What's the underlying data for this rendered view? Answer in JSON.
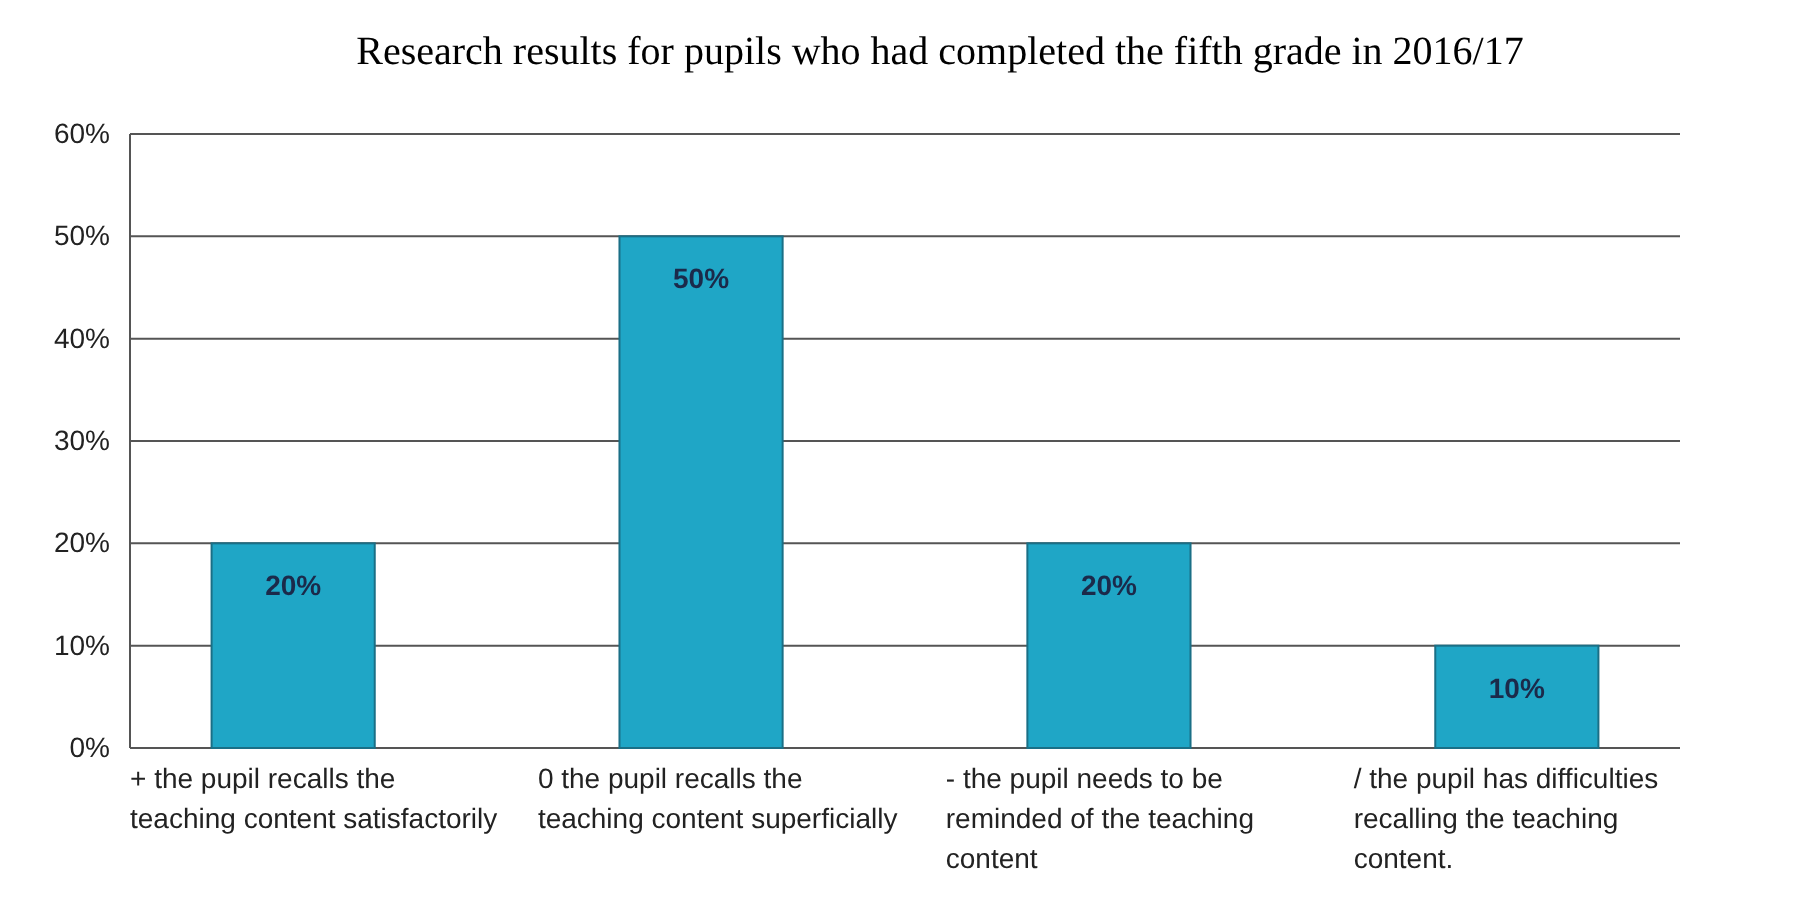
{
  "chart_data": {
    "type": "bar",
    "title": "Research results for pupils who had completed the fifth grade in 2016/17",
    "categories": [
      "+ the pupil recalls the teaching content satisfactorily",
      "0 the pupil recalls the teaching content superficially",
      "- the pupil needs to be reminded of the teaching content",
      "/ the pupil has difficulties recalling the teaching content."
    ],
    "values": [
      20,
      50,
      20,
      10
    ],
    "color": "#1fa6c6",
    "ylim": [
      0,
      60
    ],
    "yticks": [
      {
        "value": 0,
        "label": "0%"
      },
      {
        "value": 10,
        "label": "10%"
      },
      {
        "value": 20,
        "label": "20%"
      },
      {
        "value": 30,
        "label": "30%"
      },
      {
        "value": 40,
        "label": "40%"
      },
      {
        "value": 50,
        "label": "50%"
      },
      {
        "value": 60,
        "label": "60%"
      }
    ],
    "value_labels": [
      "20%",
      "50%",
      "20%",
      "10%"
    ],
    "grid": "y"
  }
}
